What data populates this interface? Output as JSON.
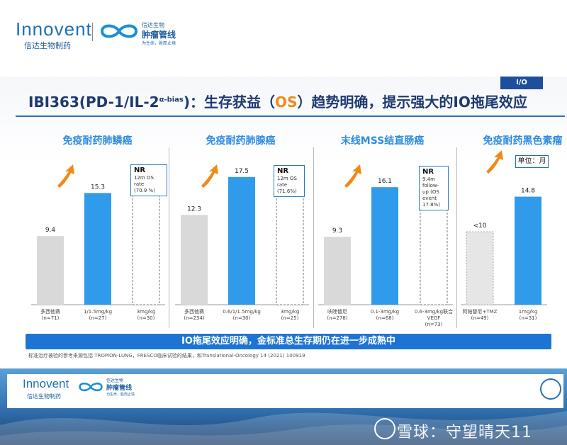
{
  "header": {
    "brand": "Innovent",
    "brand_cn": "信达生物制药",
    "pipeline_top": "信达生物",
    "pipeline_main": "肿瘤管线",
    "pipeline_sub": "为生命，胜而止境"
  },
  "slide": {
    "tag": "I/O",
    "title_a": "IBI363(PD-1/IL-2",
    "title_sup": "α-bias",
    "title_b": ")：生存获益（",
    "title_os": "OS",
    "title_c": "）趋势明确，提示强大的IO拖尾效应",
    "unit": "单位：月",
    "banner": "IO拖尾效应明确，金标准总生存期仍在进一步成熟中",
    "footnote": "标准治疗被验的参考来源包括 TROPION-LUNG，FRESCO临床试验的结果，和Translational-Oncology 14 (2021) 100919"
  },
  "chart_data": [
    {
      "type": "bar",
      "title": "免疫耐药肺鳞癌",
      "categories": [
        "多西他赛\n(n=71)",
        "1/1.5mg/kg\n(n=27)",
        "3mg/kg\n(n=30)"
      ],
      "values": [
        9.4,
        15.3,
        null
      ],
      "value_labels": [
        "9.4",
        "15.3",
        ""
      ],
      "colors": [
        "#d9d9d9",
        "#2f9bea",
        "#ffffff"
      ],
      "nr_note": {
        "head": "NR",
        "lines": [
          "12m OS",
          "rate",
          "(70.9 %)"
        ]
      }
    },
    {
      "type": "bar",
      "title": "免疫耐药肺腺癌",
      "categories": [
        "多西他赛\n(n=234)",
        "0.6/1/1.5mg/kg\n(n=30)",
        "3mg/kg\n(n=25)"
      ],
      "values": [
        12.3,
        17.5,
        null
      ],
      "value_labels": [
        "12.3",
        "17.5",
        ""
      ],
      "colors": [
        "#d9d9d9",
        "#2f9bea",
        "#ffffff"
      ],
      "nr_note": {
        "head": "NR",
        "lines": [
          "12m OS",
          "rate",
          "(71.6%)"
        ]
      }
    },
    {
      "type": "bar",
      "title": "末线MSS结直肠癌",
      "categories": [
        "呋喹替尼\n(n=278)",
        "0.1-3mg/kg\n(n=68)",
        "0.6-3mg/kg联合\nVEGF\n(n=73)"
      ],
      "values": [
        9.3,
        16.1,
        null
      ],
      "value_labels": [
        "9.3",
        "16.1",
        ""
      ],
      "colors": [
        "#d9d9d9",
        "#2f9bea",
        "#ffffff"
      ],
      "nr_note": {
        "head": "NR",
        "lines": [
          "9.4m",
          "follow-",
          "up (OS",
          "event",
          "17.8%)"
        ]
      }
    },
    {
      "type": "bar",
      "title": "免疫耐药黑色素瘤",
      "categories": [
        "阿帕替尼+TMZ\n(n=49)",
        "1mg/kg\n(n=31)"
      ],
      "values": [
        10,
        14.8
      ],
      "value_labels": [
        "<10",
        "14.8"
      ],
      "colors": [
        "#e6e6e6",
        "#2f9bea"
      ]
    }
  ],
  "watermark": "雪球：守望晴天11",
  "bottom": {
    "brand": "Innovent",
    "brand_cn": "信达生物制药",
    "pipeline_main": "肿瘤管线",
    "pipeline_top": "信达生物",
    "pipeline_sub": "为生命，胜而止境"
  }
}
